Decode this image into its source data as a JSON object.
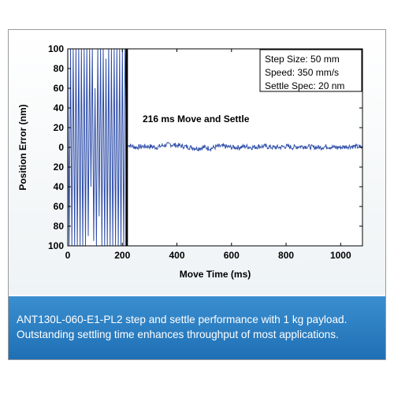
{
  "chart_data": {
    "type": "line",
    "title": "",
    "annotation": "216 ms Move and Settle",
    "xlabel": "Move Time (ms)",
    "ylabel": "Position Error (nm)",
    "xlim": [
      0,
      1080
    ],
    "ylim": [
      -100,
      100
    ],
    "x_ticks": [
      0,
      200,
      400,
      600,
      800,
      1000
    ],
    "y_ticks": [
      100,
      80,
      60,
      40,
      20,
      0,
      -20,
      -40,
      -60,
      -80,
      -100
    ],
    "y_tick_labels": [
      "100",
      "80",
      "60",
      "40",
      "20",
      "0",
      "20",
      "40",
      "60",
      "80",
      "100"
    ],
    "settle_marker_x": 216,
    "legend_box": [
      "Step Size: 50 mm",
      "Speed: 350 mm/s",
      "Settle Spec:   20 nm"
    ],
    "legend_placement": "top-right",
    "grid": false,
    "series": [
      {
        "x": [
          0,
          5,
          10,
          15,
          20,
          25,
          30,
          35,
          40,
          45,
          50,
          55,
          60,
          65,
          70,
          75,
          80,
          85,
          90,
          95,
          100,
          105,
          110,
          115,
          120,
          125,
          130,
          135,
          140,
          145,
          150,
          155,
          160,
          165,
          170,
          175,
          180,
          185,
          190,
          195,
          200,
          205,
          210,
          216,
          225,
          250,
          275,
          300,
          325,
          350,
          375,
          400,
          425,
          450,
          475,
          500,
          525,
          550,
          575,
          600,
          625,
          650,
          675,
          700,
          725,
          750,
          775,
          800,
          825,
          850,
          875,
          900,
          925,
          950,
          975,
          1000,
          1025,
          1050,
          1075
        ],
        "y": [
          100,
          -100,
          100,
          -100,
          100,
          -100,
          100,
          -100,
          100,
          -100,
          100,
          -100,
          100,
          -100,
          100,
          -90,
          100,
          -40,
          100,
          -95,
          60,
          -100,
          100,
          -70,
          100,
          -100,
          100,
          -100,
          90,
          -100,
          100,
          -100,
          100,
          -100,
          100,
          -100,
          100,
          -100,
          100,
          -100,
          100,
          -100,
          100,
          3,
          2,
          0,
          1,
          1,
          0,
          2,
          3,
          2,
          1,
          0,
          -1,
          0,
          -1,
          1,
          1,
          0,
          0,
          1,
          0,
          1,
          1,
          0,
          0,
          1,
          0,
          1,
          1,
          0,
          0,
          1,
          0,
          0,
          1,
          1,
          0
        ],
        "color": "#2f4ea8"
      }
    ]
  },
  "caption": {
    "line1": "ANT130L-060-E1-PL2 step and settle performance with 1 kg payload.",
    "line2": "Outstanding settling time enhances throughput of most applications."
  },
  "colors": {
    "trace": "#2f4ea8",
    "caption_bg": "#2a7cc2"
  }
}
